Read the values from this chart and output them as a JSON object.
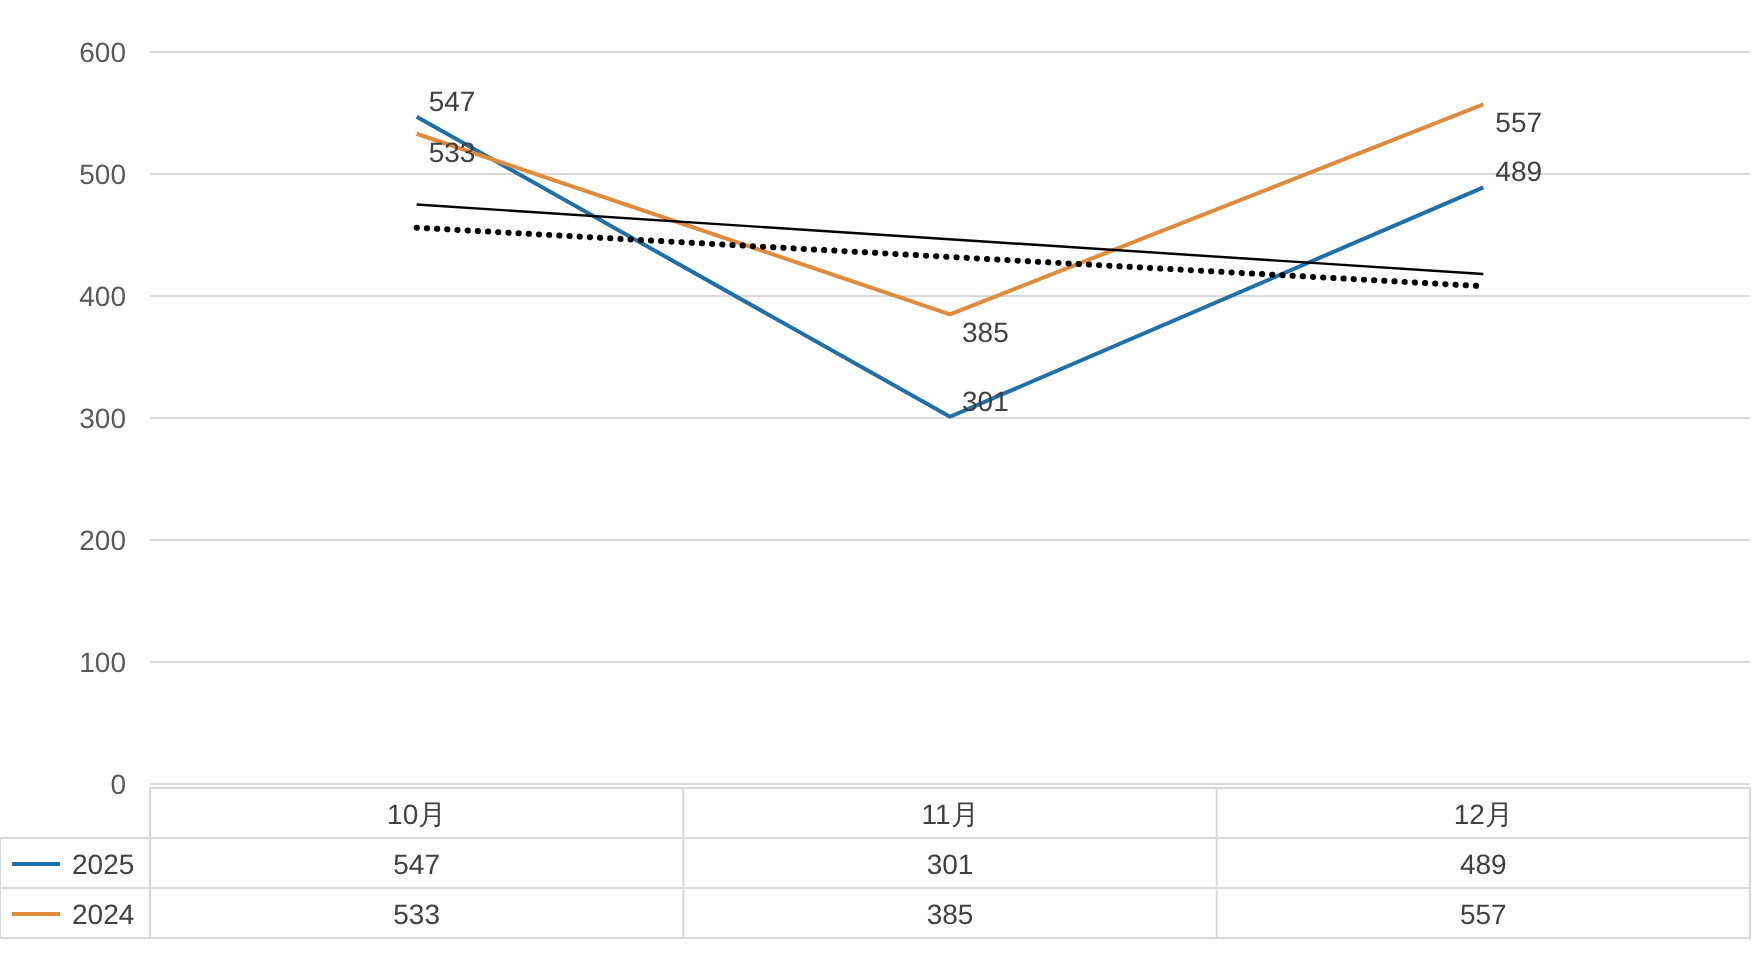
{
  "chart_data": {
    "type": "line",
    "categories": [
      "10月",
      "11月",
      "12月"
    ],
    "ylim": [
      0,
      600
    ],
    "yticks": [
      0,
      100,
      200,
      300,
      400,
      500,
      600
    ],
    "grid": "y",
    "legend": "bottom",
    "series": [
      {
        "name": "2025",
        "color": "#1f6fa8",
        "values": [
          547,
          301,
          489
        ],
        "value_labels": [
          "547",
          "301",
          "489"
        ]
      },
      {
        "name": "2024",
        "color": "#e08a3c",
        "values": [
          533,
          385,
          557
        ],
        "value_labels": [
          "533",
          "385",
          "557"
        ]
      },
      {
        "type": "line",
        "x": [
          "10月",
          "12月"
        ],
        "values": [
          475,
          418
        ],
        "color": "#000000",
        "line_style": "solid"
      },
      {
        "type": "line",
        "x": [
          "10月",
          "12月"
        ],
        "values": [
          456,
          408
        ],
        "color": "#000000",
        "line_style": "dotted"
      }
    ]
  }
}
